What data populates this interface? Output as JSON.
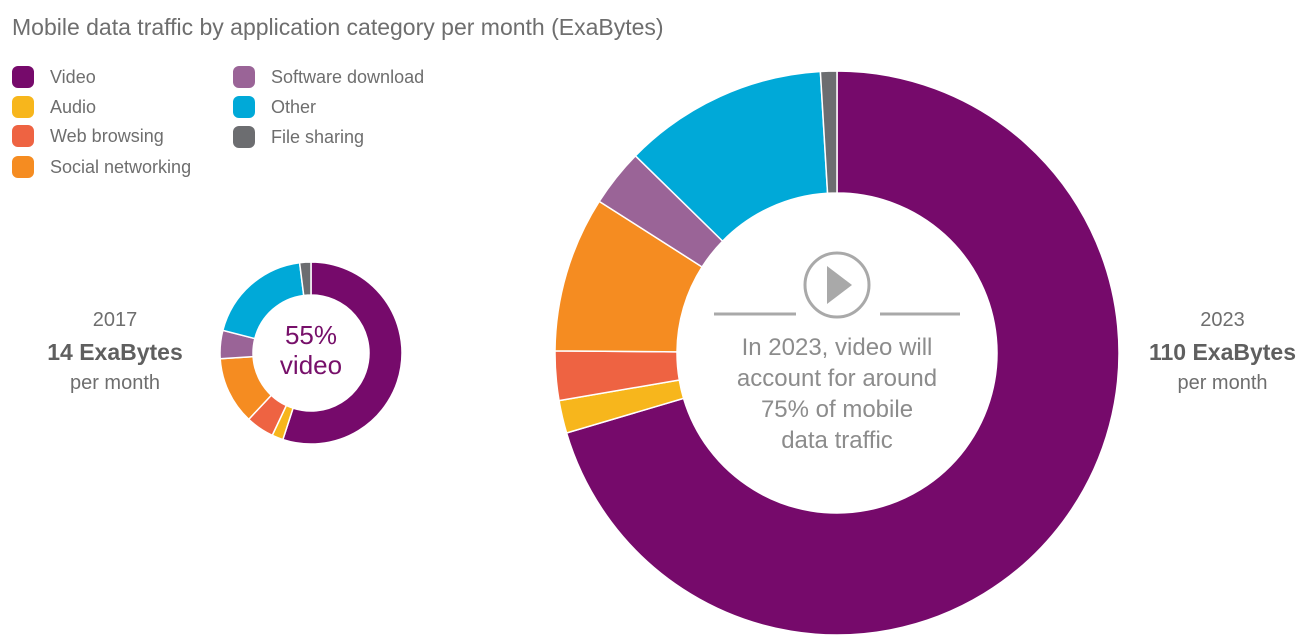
{
  "title": "Mobile data traffic by application category per month (ExaBytes)",
  "legend": [
    {
      "label": "Video",
      "color": "#760a6b"
    },
    {
      "label": "Audio",
      "color": "#f7b61c"
    },
    {
      "label": "Web browsing",
      "color": "#ee6342"
    },
    {
      "label": "Social networking",
      "color": "#f58c21"
    },
    {
      "label": "Software download",
      "color": "#9a6497"
    },
    {
      "label": "Other",
      "color": "#00a9d8"
    },
    {
      "label": "File sharing",
      "color": "#6c6d70"
    }
  ],
  "left": {
    "year": "2017",
    "amount": "14 ExaBytes",
    "unit": "per month",
    "center_line1": "55%",
    "center_line2": "video"
  },
  "right": {
    "year": "2023",
    "amount": "110 ExaBytes",
    "unit": "per month",
    "center_text": [
      "In 2023, video will",
      "account for around",
      "75% of mobile",
      "data traffic"
    ],
    "play_icon": "play-icon"
  },
  "chart_data": [
    {
      "type": "pie",
      "title": "2017",
      "categories": [
        "Video",
        "Audio",
        "Web browsing",
        "Social networking",
        "Software download",
        "Other",
        "File sharing"
      ],
      "values": [
        55,
        2,
        5,
        12,
        5,
        19,
        2
      ]
    },
    {
      "type": "pie",
      "title": "2023",
      "categories": [
        "Video",
        "Audio",
        "Web browsing",
        "Social networking",
        "Software download",
        "Other",
        "File sharing"
      ],
      "values": [
        75,
        2,
        3,
        9.5,
        3.5,
        12.5,
        1
      ]
    }
  ]
}
